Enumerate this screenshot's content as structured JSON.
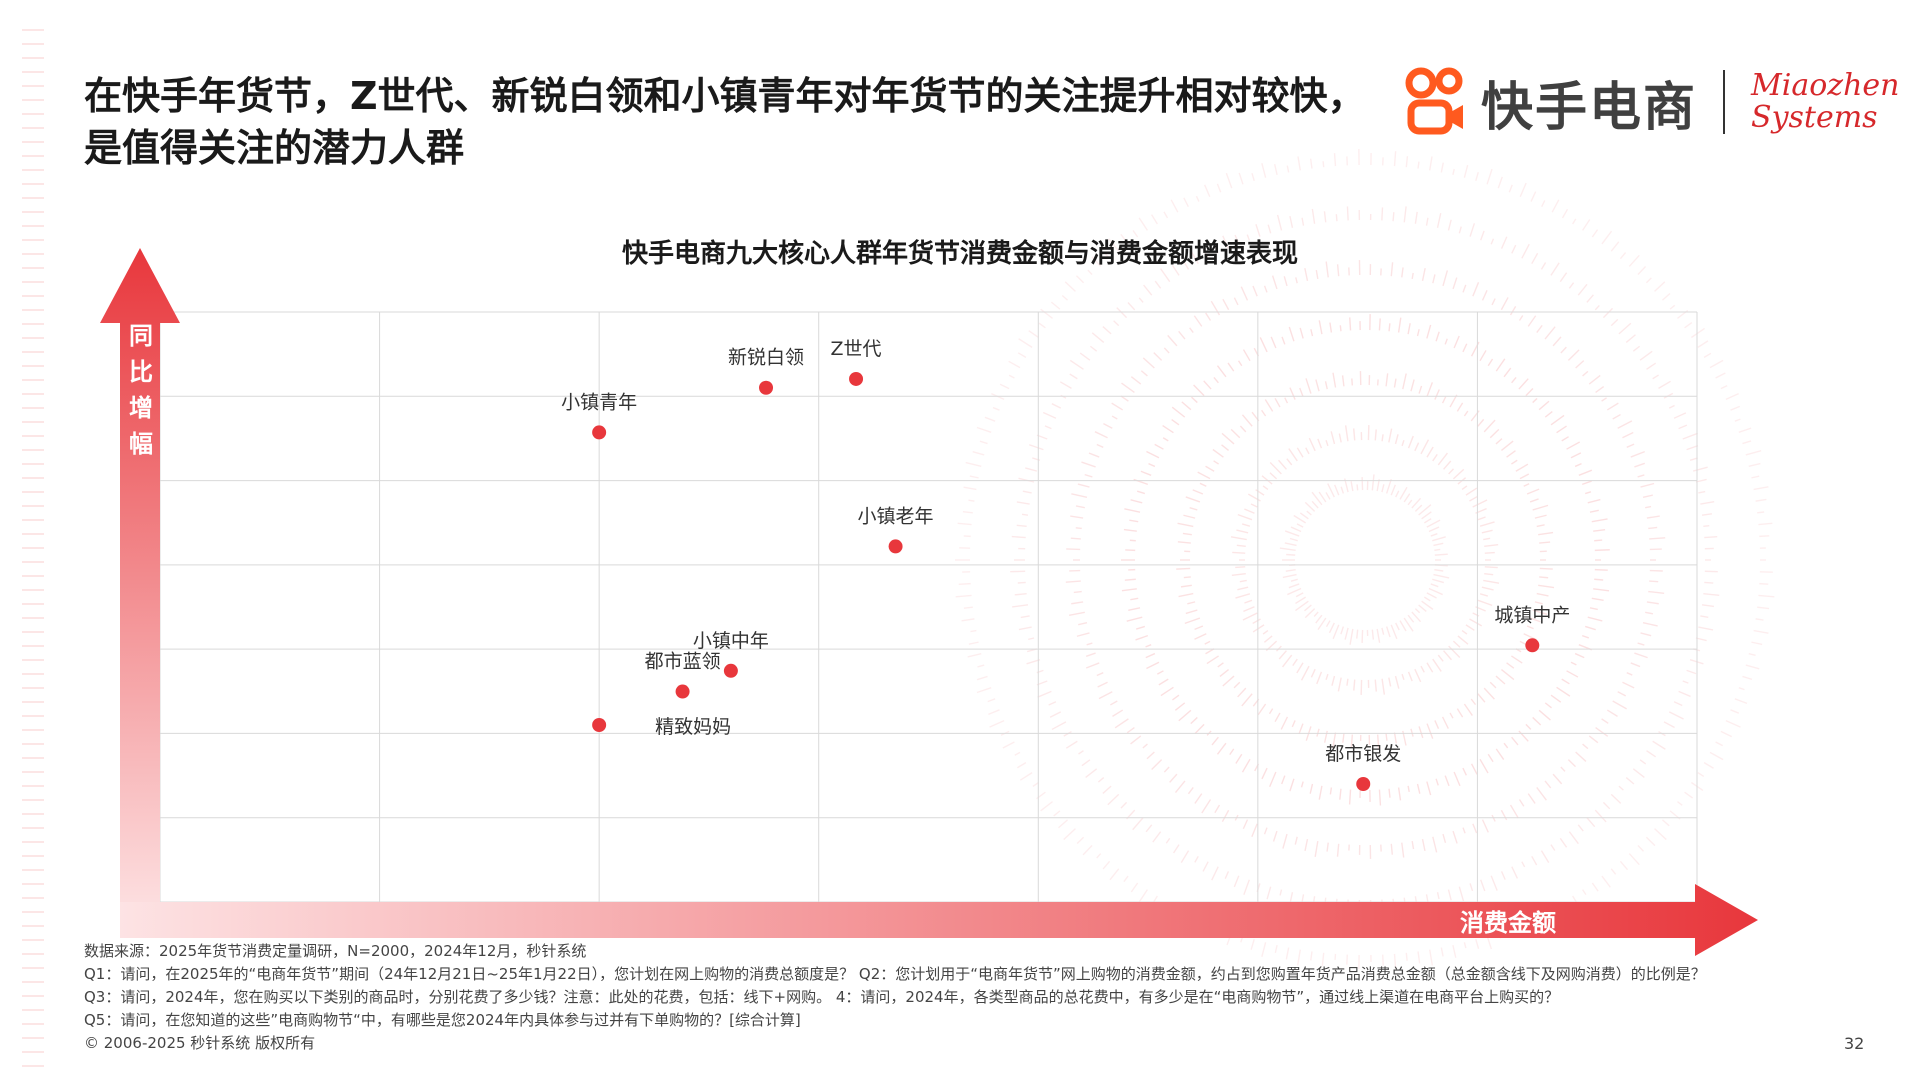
{
  "headline": "在快手年货节，Z世代、新锐白领和小镇青年对年货节的关注提升相对较快，是值得关注的潜力人群",
  "brand": {
    "name": "快手电商",
    "partner_line1": "Miaozhen",
    "partner_line2": "Systems"
  },
  "colors": {
    "accent": "#e8373c",
    "grid": "#d9d9d9",
    "point": "#e8373c"
  },
  "chart_data": {
    "type": "scatter",
    "title": "快手电商九大核心人群年货节消费金额与消费金额增速表现",
    "xlabel": "消费金额",
    "ylabel": "同比增幅",
    "xlim": [
      0,
      7
    ],
    "ylim": [
      0,
      7.4
    ],
    "grid": true,
    "axis_ticks_shown": false,
    "points": [
      {
        "label": "新锐白领",
        "x": 2.76,
        "y": 6.45
      },
      {
        "label": "Z世代",
        "x": 3.17,
        "y": 6.56
      },
      {
        "label": "小镇青年",
        "x": 2.0,
        "y": 5.89
      },
      {
        "label": "小镇老年",
        "x": 3.35,
        "y": 4.46
      },
      {
        "label": "城镇中产",
        "x": 6.25,
        "y": 3.22
      },
      {
        "label": "小镇中年",
        "x": 2.6,
        "y": 2.9
      },
      {
        "label": "都市蓝领",
        "x": 2.38,
        "y": 2.64
      },
      {
        "label": "精致妈妈",
        "x": 2.0,
        "y": 2.22
      },
      {
        "label": "都市银发",
        "x": 5.48,
        "y": 1.48
      }
    ]
  },
  "footer": {
    "source": "数据来源：2025年货节消费定量调研，N=2000，2024年12月，秒针系统",
    "q1": "Q1：请问，在2025年的“电商年货节”期间（24年12月21日~25年1月22日），您计划在网上购物的消费总额度是？ Q2：您计划用于“电商年货节”网上购物的消费金额，约占到您购置年货产品消费总金额（总金额含线下及网购消费）的比例是？",
    "q3": "Q3：请问，2024年，您在购买以下类别的商品时，分别花费了多少钱？注意：此处的花费，包括：线下+网购。   4：请问，2024年，各类型商品的总花费中，有多少是在“电商购物节”，通过线上渠道在电商平台上购买的？",
    "q5": "Q5：请问，在您知道的这些”电商购物节“中，有哪些是您2024年内具体参与过并有下单购物的？[综合计算]",
    "copyright": "© 2006-2025 秒针系统 版权所有"
  },
  "page_number": "32"
}
